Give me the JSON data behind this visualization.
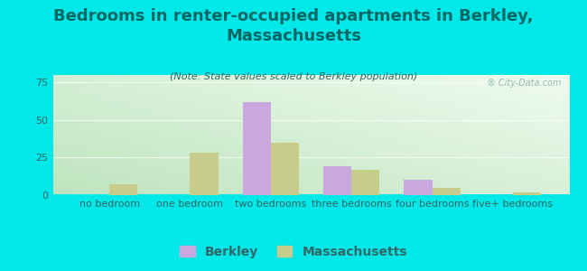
{
  "title": "Bedrooms in renter-occupied apartments in Berkley,\nMassachusetts",
  "subtitle": "(Note: State values scaled to Berkley population)",
  "categories": [
    "no bedroom",
    "one bedroom",
    "two bedrooms",
    "three bedrooms",
    "four bedrooms",
    "five+ bedrooms"
  ],
  "berkley_values": [
    0,
    0,
    62,
    19,
    10,
    0
  ],
  "massachusetts_values": [
    7,
    28,
    35,
    17,
    5,
    2
  ],
  "berkley_color": "#c9a8e0",
  "massachusetts_color": "#c8cc8a",
  "background_color": "#00e8e8",
  "ylim": [
    0,
    80
  ],
  "yticks": [
    0,
    25,
    50,
    75
  ],
  "bar_width": 0.35,
  "title_fontsize": 13,
  "subtitle_fontsize": 8,
  "tick_fontsize": 8,
  "legend_fontsize": 10,
  "title_color": "#006666"
}
